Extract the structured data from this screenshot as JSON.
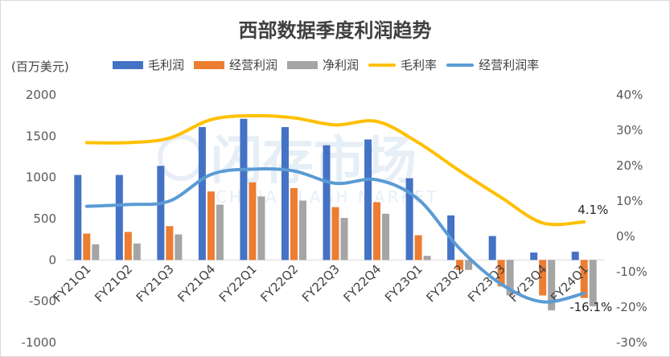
{
  "title": "西部数据季度利润趋势",
  "unit_label": "(百万美元)",
  "watermark": {
    "main": "闪存市场",
    "sub": "CHINA FLASH MARKET"
  },
  "colors": {
    "gross_profit": "#4472c4",
    "operating_profit": "#ed7d31",
    "net_profit": "#a5a5a5",
    "gross_margin": "#ffc000",
    "operating_margin": "#5b9bd5"
  },
  "legend": [
    "毛利润",
    "经营利润",
    "净利润",
    "毛利率",
    "经营利润率"
  ],
  "chart_data": {
    "type": "bar",
    "title": "西部数据季度利润趋势",
    "ylabel": "(百万美元)",
    "ylim": [
      -1000,
      2000
    ],
    "y2lim": [
      -30,
      40
    ],
    "yticks": [
      "2000",
      "1500",
      "1000",
      "500",
      "0",
      "-500",
      "-1000"
    ],
    "y2ticks": [
      "40%",
      "30%",
      "20%",
      "10%",
      "0%",
      "-10%",
      "-20%",
      "-30%"
    ],
    "categories": [
      "FY21Q1",
      "FY21Q2",
      "FY21Q3",
      "FY21Q4",
      "FY22Q1",
      "FY22Q2",
      "FY22Q3",
      "FY22Q4",
      "FY23Q1",
      "FY23Q2",
      "FY23Q3",
      "FY23Q4",
      "FY24Q1"
    ],
    "series": [
      {
        "name": "毛利润",
        "type": "bar",
        "values": [
          1030,
          1030,
          1140,
          1610,
          1710,
          1610,
          1390,
          1460,
          990,
          540,
          290,
          90,
          100
        ]
      },
      {
        "name": "经营利润",
        "type": "bar",
        "values": [
          320,
          340,
          410,
          830,
          940,
          870,
          640,
          700,
          300,
          -120,
          -320,
          -430,
          -460
        ]
      },
      {
        "name": "净利润",
        "type": "bar",
        "values": [
          190,
          200,
          310,
          670,
          770,
          720,
          510,
          560,
          50,
          -120,
          -430,
          -610,
          -560
        ]
      },
      {
        "name": "毛利率",
        "type": "line",
        "axis": "right",
        "unit": "%",
        "values": [
          26.5,
          26.5,
          27.8,
          33.0,
          34.1,
          33.5,
          31.5,
          32.5,
          26.5,
          18.5,
          11.0,
          3.8,
          4.1
        ]
      },
      {
        "name": "经营利润率",
        "type": "line",
        "axis": "right",
        "unit": "%",
        "values": [
          8.5,
          9.0,
          10.0,
          17.5,
          19.0,
          18.5,
          15.0,
          16.0,
          10.5,
          -3.5,
          -13.5,
          -18.5,
          -16.1
        ]
      }
    ],
    "annotations": [
      {
        "series": "毛利率",
        "category": "FY24Q1",
        "text": "4.1%"
      },
      {
        "series": "经营利润率",
        "category": "FY24Q1",
        "text": "-16.1%"
      }
    ],
    "legend_position": "top",
    "grid": false
  }
}
